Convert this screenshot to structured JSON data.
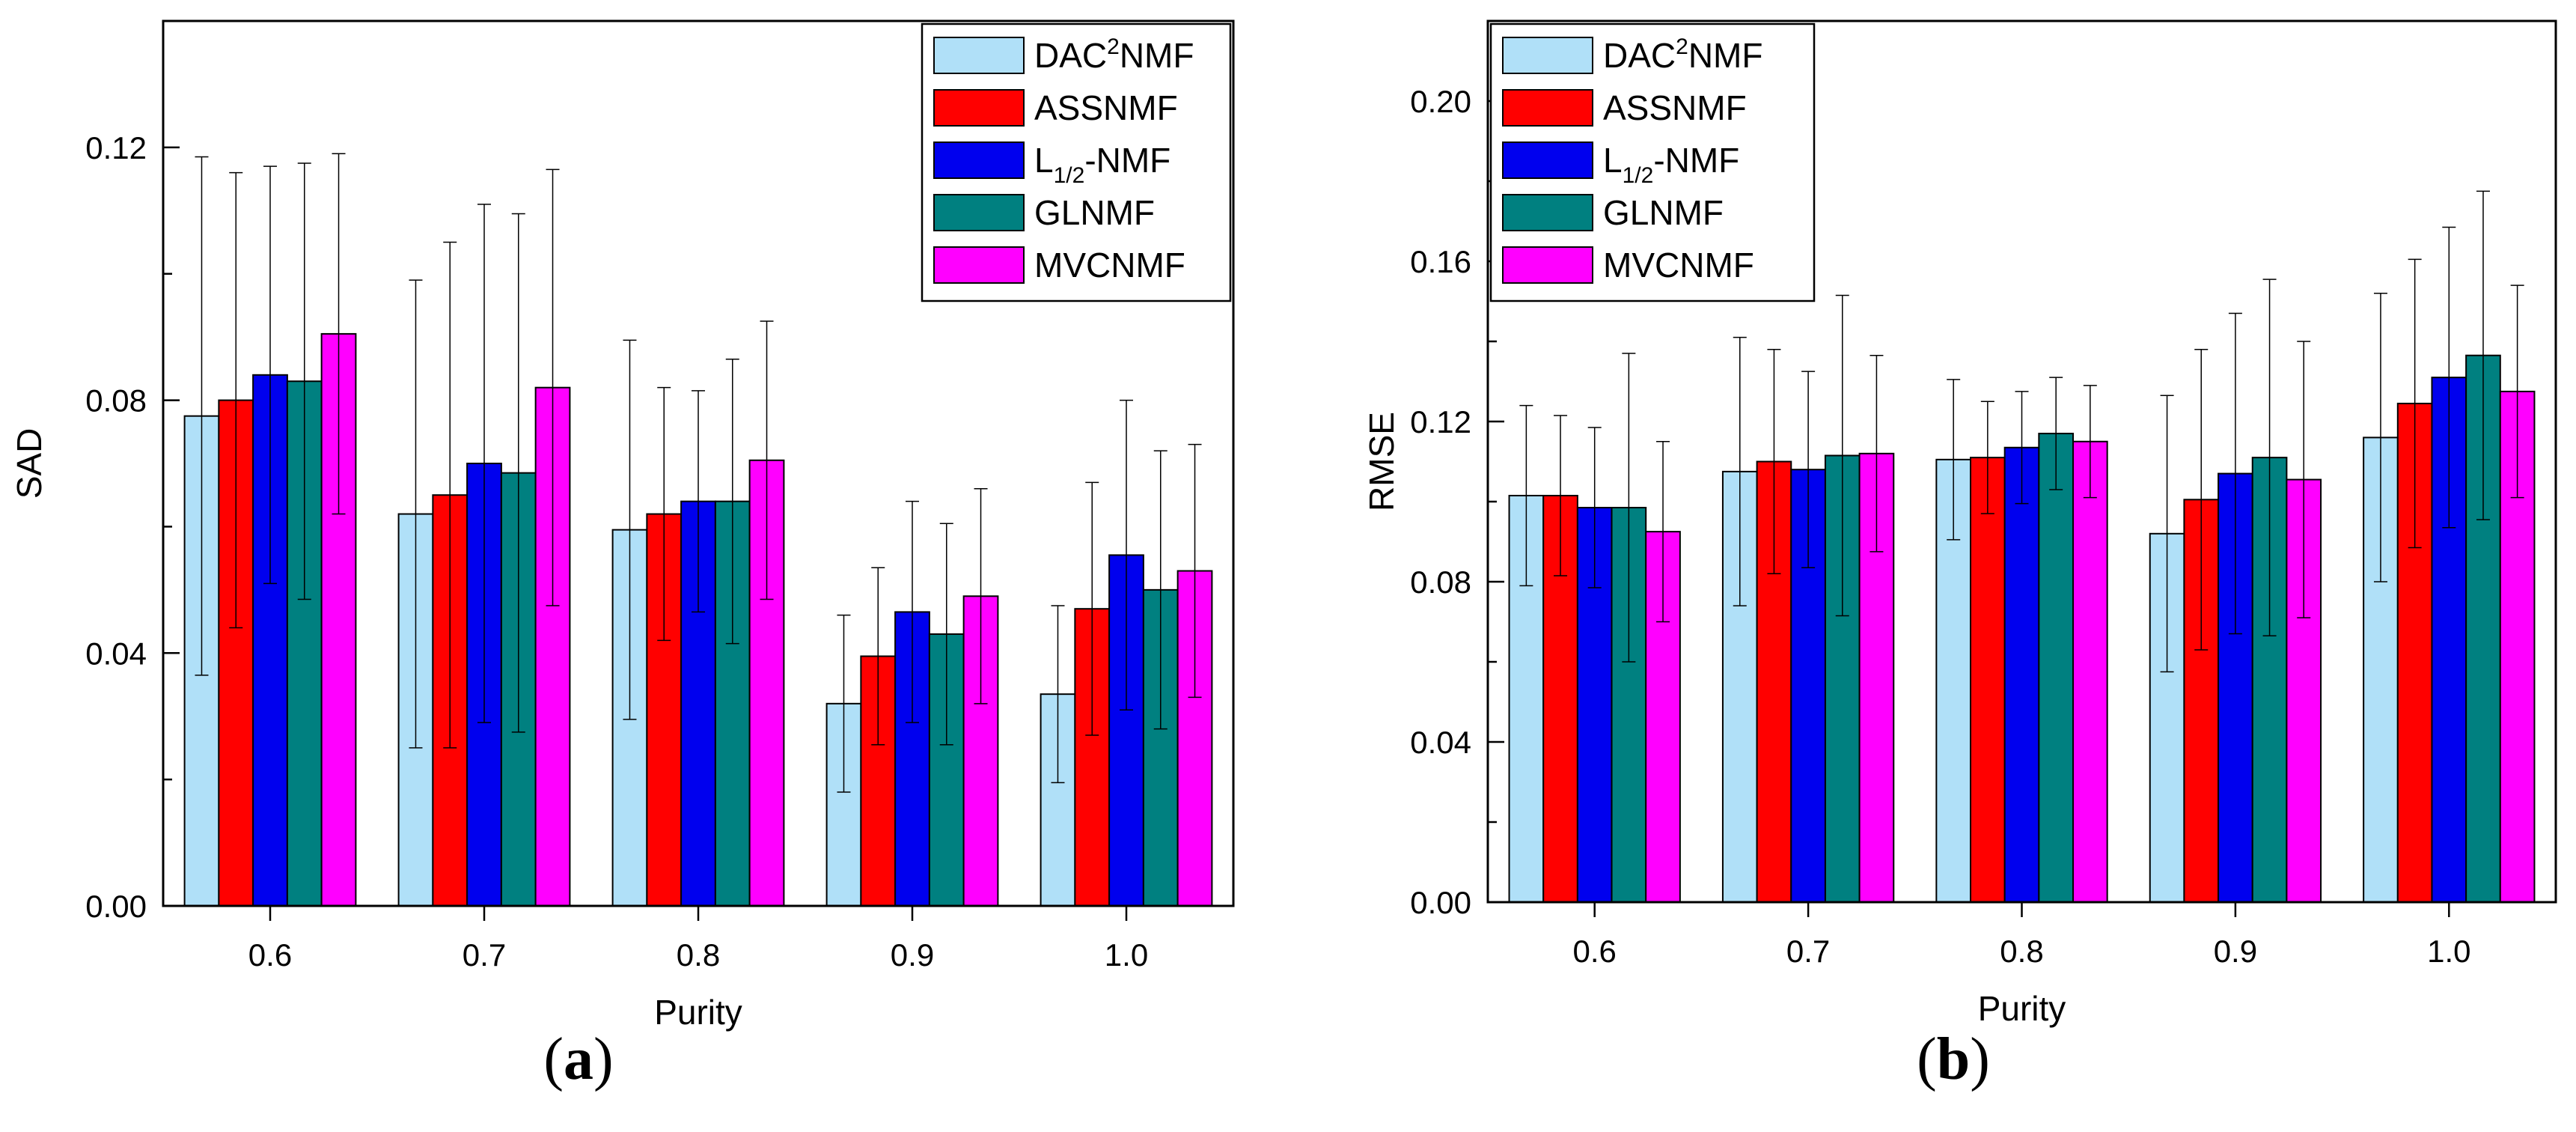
{
  "chart_data": [
    {
      "type": "bar",
      "panel": "a",
      "caption": "a",
      "xlabel": "Purity",
      "ylabel": "SAD",
      "ylim": [
        0,
        0.14
      ],
      "yticks": [
        0.0,
        0.04,
        0.08,
        0.12
      ],
      "ytick_labels": [
        "0.00",
        "0.04",
        "0.08",
        "0.12"
      ],
      "categories": [
        "0.6",
        "0.7",
        "0.8",
        "0.9",
        "1.0"
      ],
      "legend_position": "top-right",
      "series": [
        {
          "name": "DAC²NMF",
          "name_base": "DAC",
          "name_sup": "2",
          "name_rest": "NMF",
          "color": "#b0e0f8",
          "values": [
            0.0775,
            0.062,
            0.0595,
            0.032,
            0.0335
          ],
          "errors": [
            0.041,
            0.037,
            0.03,
            0.014,
            0.014
          ]
        },
        {
          "name": "ASSNMF",
          "color": "#ff0000",
          "values": [
            0.08,
            0.065,
            0.062,
            0.0395,
            0.047
          ],
          "errors": [
            0.036,
            0.04,
            0.02,
            0.014,
            0.02
          ]
        },
        {
          "name": "L1/2-NMF",
          "name_base": "L",
          "name_sub": "1/2",
          "name_rest": "-NMF",
          "color": "#0000ee",
          "values": [
            0.084,
            0.07,
            0.064,
            0.0465,
            0.0555
          ],
          "errors": [
            0.033,
            0.041,
            0.0175,
            0.0175,
            0.0245
          ]
        },
        {
          "name": "GLNMF",
          "color": "#008080",
          "values": [
            0.083,
            0.0685,
            0.064,
            0.043,
            0.05
          ],
          "errors": [
            0.0345,
            0.041,
            0.0225,
            0.0175,
            0.022
          ]
        },
        {
          "name": "MVCNMF",
          "color": "#ff00ff",
          "values": [
            0.0905,
            0.082,
            0.0705,
            0.049,
            0.053
          ],
          "errors": [
            0.0285,
            0.0345,
            0.022,
            0.017,
            0.02
          ]
        }
      ]
    },
    {
      "type": "bar",
      "panel": "b",
      "caption": "b",
      "xlabel": "Purity",
      "ylabel": "RMSE",
      "ylim": [
        0,
        0.22
      ],
      "yticks": [
        0.0,
        0.04,
        0.08,
        0.12,
        0.16,
        0.2
      ],
      "ytick_labels": [
        "0.00",
        "0.04",
        "0.08",
        "0.12",
        "0.16",
        "0.20"
      ],
      "categories": [
        "0.6",
        "0.7",
        "0.8",
        "0.9",
        "1.0"
      ],
      "legend_position": "top-left",
      "series": [
        {
          "name": "DAC²NMF",
          "name_base": "DAC",
          "name_sup": "2",
          "name_rest": "NMF",
          "color": "#b0e0f8",
          "values": [
            0.1015,
            0.1075,
            0.1105,
            0.092,
            0.116
          ],
          "errors": [
            0.0225,
            0.0335,
            0.02,
            0.0345,
            0.036
          ]
        },
        {
          "name": "ASSNMF",
          "color": "#ff0000",
          "values": [
            0.1015,
            0.11,
            0.111,
            0.1005,
            0.1245
          ],
          "errors": [
            0.02,
            0.028,
            0.014,
            0.0375,
            0.036
          ]
        },
        {
          "name": "L1/2-NMF",
          "name_base": "L",
          "name_sub": "1/2",
          "name_rest": "-NMF",
          "color": "#0000ee",
          "values": [
            0.0985,
            0.108,
            0.1135,
            0.107,
            0.131
          ],
          "errors": [
            0.02,
            0.0245,
            0.014,
            0.04,
            0.0375
          ]
        },
        {
          "name": "GLNMF",
          "color": "#008080",
          "values": [
            0.0985,
            0.1115,
            0.117,
            0.111,
            0.1365
          ],
          "errors": [
            0.0385,
            0.04,
            0.014,
            0.0445,
            0.041
          ]
        },
        {
          "name": "MVCNMF",
          "color": "#ff00ff",
          "values": [
            0.0925,
            0.112,
            0.115,
            0.1055,
            0.1275
          ],
          "errors": [
            0.0225,
            0.0245,
            0.014,
            0.0345,
            0.0265
          ]
        }
      ]
    }
  ]
}
